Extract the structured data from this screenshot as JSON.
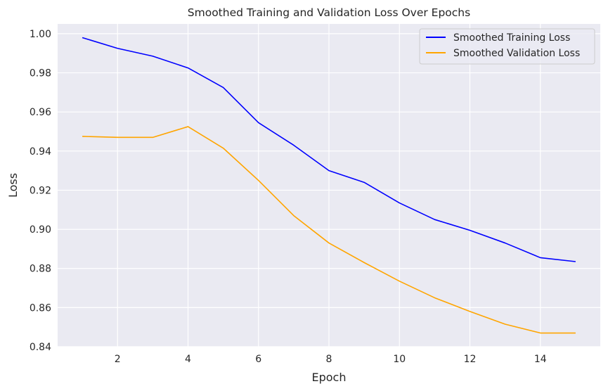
{
  "chart_data": {
    "type": "line",
    "title": "Smoothed Training and Validation Loss Over Epochs",
    "xlabel": "Epoch",
    "ylabel": "Loss",
    "xlim": [
      0.3,
      15.7
    ],
    "ylim": [
      0.84,
      1.005
    ],
    "xticks": [
      2,
      4,
      6,
      8,
      10,
      12,
      14
    ],
    "yticks": [
      0.84,
      0.86,
      0.88,
      0.9,
      0.92,
      0.94,
      0.96,
      0.98,
      1.0
    ],
    "ytick_labels": [
      "0.84",
      "0.86",
      "0.88",
      "0.90",
      "0.92",
      "0.94",
      "0.96",
      "0.98",
      "1.00"
    ],
    "grid": true,
    "legend_position": "top-right",
    "x": [
      1,
      2,
      3,
      4,
      5,
      6,
      7,
      8,
      9,
      10,
      11,
      12,
      13,
      14,
      15
    ],
    "series": [
      {
        "name": "Smoothed Training Loss",
        "color": "#0000ff",
        "values": [
          0.998,
          0.9925,
          0.9885,
          0.9825,
          0.9725,
          0.9545,
          0.943,
          0.93,
          0.924,
          0.9135,
          0.905,
          0.8995,
          0.893,
          0.8855,
          0.8835
        ]
      },
      {
        "name": "Smoothed Validation Loss",
        "color": "#ffa500",
        "values": [
          0.9475,
          0.947,
          0.947,
          0.9525,
          0.9415,
          0.925,
          0.907,
          0.893,
          0.883,
          0.8735,
          0.865,
          0.858,
          0.8515,
          0.847,
          0.847
        ]
      }
    ]
  }
}
